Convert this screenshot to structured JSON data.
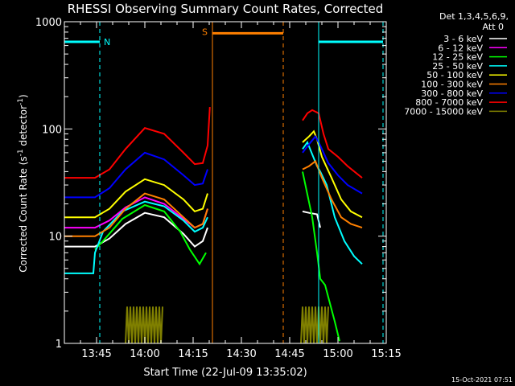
{
  "chart_data": {
    "type": "line",
    "title": "RHESSI Observing Summary Count Rates, Corrected",
    "xlabel": "Start Time (22-Jul-09 13:35:02)",
    "ylabel_prefix": "Corrected Count Rate (s",
    "ylabel_sup1": "-1",
    "ylabel_mid": " detector",
    "ylabel_sup2": "-1",
    "ylabel_suffix": ")",
    "y_scale": "log",
    "ylim": [
      1,
      1000
    ],
    "xlim_minutes_after_13_35": [
      0,
      100
    ],
    "x_ticks": [
      {
        "label": "13:45",
        "minutes": 10
      },
      {
        "label": "14:00",
        "minutes": 25
      },
      {
        "label": "14:15",
        "minutes": 40
      },
      {
        "label": "14:30",
        "minutes": 55
      },
      {
        "label": "14:45",
        "minutes": 70
      },
      {
        "label": "15:00",
        "minutes": 85
      },
      {
        "label": "15:15",
        "minutes": 100
      }
    ],
    "y_ticks": [
      {
        "label": "1",
        "value": 1
      },
      {
        "label": "10",
        "value": 10
      },
      {
        "label": "100",
        "value": 100
      },
      {
        "label": "1000",
        "value": 1000
      }
    ],
    "legend_header": [
      "Det 1,3,4,5,6,9,",
      "Att 0"
    ],
    "legend_position": "right",
    "series": [
      {
        "name": "3 - 6 keV",
        "color": "#ffffff",
        "segments": [
          {
            "x": [
              0,
              9.5,
              14,
              19,
              25,
              31,
              37,
              40.5,
              43,
              44.5
            ],
            "y": [
              8,
              8,
              9.5,
              13,
              16.5,
              15,
              10.5,
              8,
              9,
              12
            ]
          },
          {
            "x": [
              74,
              76,
              78.5,
              79.5
            ],
            "y": [
              17,
              16.5,
              16,
              12
            ]
          }
        ]
      },
      {
        "name": "6 - 12 keV",
        "color": "#ff00ff",
        "segments": [
          {
            "x": [
              0,
              9.5,
              14,
              19,
              25,
              31,
              37,
              40.5,
              43,
              44.5
            ],
            "y": [
              12,
              12,
              14,
              18.5,
              23,
              20,
              14.5,
              12,
              13,
              18
            ]
          }
        ]
      },
      {
        "name": "12 - 25 keV",
        "color": "#00ff00",
        "segments": [
          {
            "x": [
              9.5,
              12,
              18,
              25,
              31,
              36,
              39,
              42,
              44
            ],
            "y": [
              7.5,
              9,
              14.5,
              19.5,
              17,
              11,
              7.5,
              5.5,
              7
            ]
          },
          {
            "x": [
              74,
              77,
              78.5,
              79.5,
              81,
              84,
              85.5
            ],
            "y": [
              40,
              15,
              7,
              4,
              3.5,
              1.6,
              1.05
            ]
          }
        ]
      },
      {
        "name": "25 - 50 keV",
        "color": "#00ffff",
        "segments": [
          {
            "x": [
              0,
              9,
              9.5,
              12,
              18,
              25,
              31,
              37,
              40.5,
              43,
              44.5
            ],
            "y": [
              4.5,
              4.5,
              7,
              11,
              17,
              21,
              19,
              14,
              11,
              12,
              15
            ]
          },
          {
            "x": [
              74,
              75.5,
              77,
              78.5,
              79.5,
              81.5,
              84,
              87,
              90,
              92.5
            ],
            "y": [
              65,
              75,
              58,
              45,
              40,
              30,
              15,
              9,
              6.5,
              5.5
            ]
          }
        ]
      },
      {
        "name": "50 - 100 keV",
        "color": "#ffff00",
        "segments": [
          {
            "x": [
              0,
              9.5,
              14,
              19,
              25,
              31,
              37,
              40.5,
              43,
              44.5
            ],
            "y": [
              15,
              15,
              18,
              26,
              34,
              30,
              22,
              17,
              18,
              25
            ]
          },
          {
            "x": [
              74,
              76,
              77.5,
              78.5,
              80,
              83,
              86,
              89,
              92.5
            ],
            "y": [
              75,
              85,
              95,
              80,
              55,
              35,
              22,
              17,
              15
            ]
          }
        ]
      },
      {
        "name": "100 - 300 keV",
        "color": "#ff8000",
        "segments": [
          {
            "x": [
              0,
              9.5,
              14,
              19,
              25,
              31,
              37,
              40.5,
              43,
              44.5
            ],
            "y": [
              10,
              10,
              12,
              18,
              25,
              22,
              15,
              12,
              13,
              18
            ]
          },
          {
            "x": [
              74,
              76,
              78,
              80,
              83,
              86,
              89,
              92.5
            ],
            "y": [
              42,
              45,
              50,
              35,
              22,
              15,
              13,
              12
            ]
          }
        ]
      },
      {
        "name": "300 - 800 keV",
        "color": "#0000ff",
        "segments": [
          {
            "x": [
              0,
              9.5,
              14,
              19,
              25,
              31,
              37,
              40.5,
              43,
              44.5
            ],
            "y": [
              23,
              23,
              28,
              42,
              60,
              52,
              37,
              30,
              31,
              42
            ]
          },
          {
            "x": [
              74,
              76,
              78,
              79.5,
              82,
              85,
              88,
              92.5
            ],
            "y": [
              60,
              72,
              85,
              70,
              48,
              37,
              30,
              25
            ]
          }
        ]
      },
      {
        "name": "800 - 7000 keV",
        "color": "#ff0000",
        "segments": [
          {
            "x": [
              0,
              9.5,
              14,
              19,
              25,
              31,
              37,
              40.5,
              43,
              44.5,
              45.2
            ],
            "y": [
              35,
              35,
              42,
              65,
              102,
              90,
              60,
              47,
              48,
              70,
              160
            ]
          },
          {
            "x": [
              74,
              75.5,
              77,
              79,
              80.5,
              82,
              85,
              88,
              92.5
            ],
            "y": [
              120,
              140,
              150,
              140,
              90,
              65,
              55,
              45,
              35
            ]
          }
        ]
      },
      {
        "name": "7000 - 15000 keV",
        "color": "#808000",
        "segments": [
          {
            "x": [
              19,
              19.5,
              20,
              20.5,
              21,
              21.5,
              22,
              22.5,
              23,
              23.5,
              24,
              24.5,
              25,
              25.5,
              26,
              26.5,
              27,
              27.5,
              28,
              28.5,
              29,
              29.5,
              30,
              30.5
            ],
            "y": [
              1,
              2.2,
              1,
              2.2,
              1,
              2.2,
              1,
              2.2,
              1,
              2.2,
              1,
              2.2,
              1,
              2.2,
              1,
              2.2,
              1,
              2.2,
              1,
              2.2,
              1,
              2.2,
              1,
              2.2
            ]
          },
          {
            "x": [
              73.5,
              74,
              74.5,
              75,
              75.5,
              76,
              76.5,
              77,
              77.5,
              78,
              78.5,
              79,
              79.5,
              80,
              80.5,
              81,
              81.5,
              82
            ],
            "y": [
              1,
              2.2,
              1,
              2.2,
              1,
              2.2,
              1,
              2.2,
              1,
              2.2,
              1,
              2.2,
              1,
              2.2,
              1,
              2.2,
              1,
              2.2
            ]
          }
        ]
      }
    ],
    "interval_bars": [
      {
        "label": "N",
        "color": "#00ffff",
        "x": [
          0,
          11
        ],
        "value": 650
      },
      {
        "label": "",
        "color": "#00ffff",
        "x": [
          79,
          99
        ],
        "value": 650
      },
      {
        "label": "S",
        "color": "#ff8000",
        "x": [
          46,
          68
        ],
        "value": 780
      }
    ],
    "dashed_markers": [
      {
        "color": "#00ffff",
        "x": 11
      },
      {
        "color": "#00ffff",
        "x": 99
      },
      {
        "color": "#ff8000",
        "x": 68
      }
    ],
    "solid_markers": [
      {
        "color": "#ff8000",
        "x": 46
      },
      {
        "color": "#00ffff",
        "x": 79
      }
    ],
    "timestamp": "15-Oct-2021 07:51"
  }
}
